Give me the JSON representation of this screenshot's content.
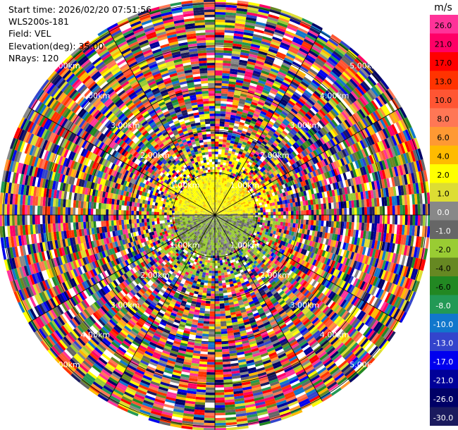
{
  "header": {
    "start_time": "Start time: 2026/02/20 07:51:56",
    "instrument": "WLS200s-181",
    "field": "Field: VEL",
    "elevation": "Elevation(deg): 35.00",
    "nrays": "NRays: 120"
  },
  "colorbar": {
    "unit": "m/s",
    "ticks": [
      "26.0",
      "21.0",
      "17.0",
      "13.0",
      "10.0",
      "8.0",
      "6.0",
      "4.0",
      "2.0",
      "1.0",
      "0.0",
      "-1.0",
      "-2.0",
      "-4.0",
      "-6.0",
      "-8.0",
      "-10.0",
      "-13.0",
      "-17.0",
      "-21.0",
      "-26.0",
      "-30.0"
    ],
    "colors": [
      "#ff3399",
      "#ff0066",
      "#ff0000",
      "#ff3300",
      "#ff5533",
      "#ff7755",
      "#ff9933",
      "#ffbb00",
      "#ffff00",
      "#dddd33",
      "#888888",
      "#666666",
      "#99cc33",
      "#668822",
      "#228822",
      "#229955",
      "#1177cc",
      "#3344cc",
      "#0000ee",
      "#000099",
      "#000066",
      "#1a1a5e"
    ]
  },
  "chart_data": {
    "type": "heatmap",
    "subtype": "ppi-polar-radial-velocity",
    "field": "VEL",
    "unit": "m/s",
    "nrays": 120,
    "range_rings_km": [
      1,
      2,
      3,
      4,
      5
    ],
    "ring_labels": [
      "1.00km",
      "2.00km",
      "3.00km",
      "4.00km",
      "5.00km"
    ],
    "value_range": [
      -30,
      30
    ],
    "near_range_description": "yellow (positive, ~4 m/s) north of center, green/grey (negative, ~-2 m/s) south; noisy multicolored values beyond ~1 km"
  }
}
